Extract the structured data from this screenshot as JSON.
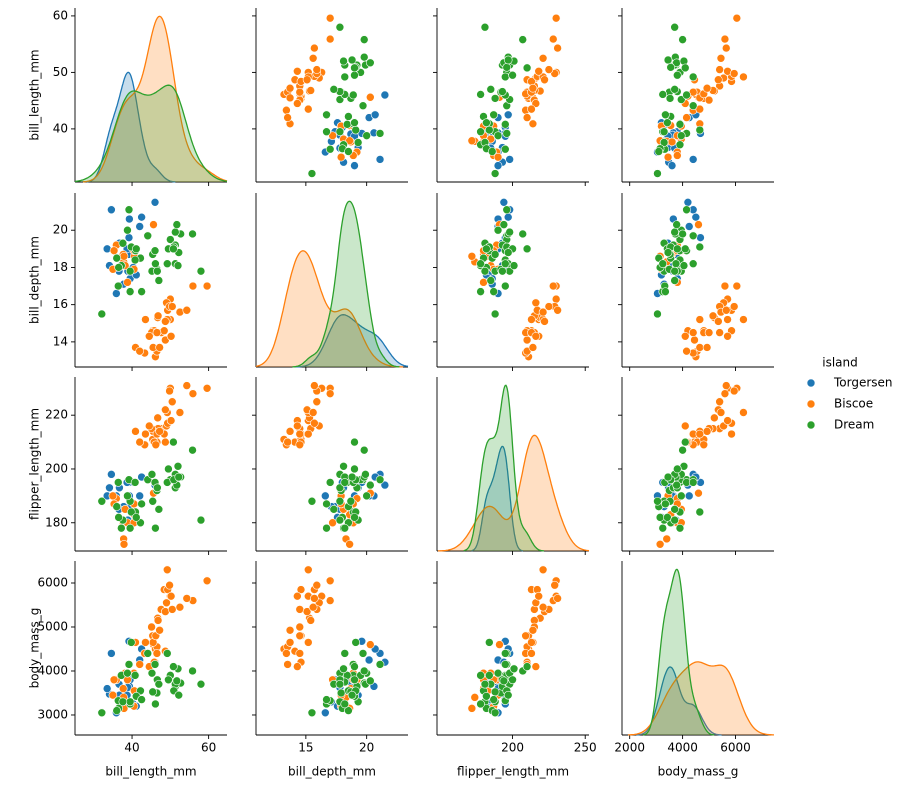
{
  "chart_data": {
    "type": "pairplot",
    "variables": [
      {
        "name": "bill_length_mm",
        "xlim": [
          25.1,
          64.8
        ],
        "xticks": [
          40,
          60
        ],
        "ylim": [
          30.6,
          61.4
        ],
        "yticks": [
          40,
          50,
          60
        ]
      },
      {
        "name": "bill_depth_mm",
        "xlim": [
          10.9,
          23.4
        ],
        "xticks": [
          15,
          20
        ],
        "ylim": [
          12.65,
          22.0
        ],
        "yticks": [
          14,
          16,
          18,
          20
        ]
      },
      {
        "name": "flipper_length_mm",
        "xlim": [
          148,
          252.6
        ],
        "xticks": [
          200,
          250
        ],
        "ylim": [
          169.5,
          234.2
        ],
        "yticks": [
          180,
          200,
          220
        ]
      },
      {
        "name": "body_mass_g",
        "xlim": [
          1709,
          7455
        ],
        "xticks": [
          2000,
          4000,
          6000
        ],
        "ylim": [
          2545,
          6500
        ],
        "yticks": [
          3000,
          4000,
          5000,
          6000
        ]
      }
    ],
    "legend_title": "island",
    "series": [
      {
        "name": "Torgersen",
        "color": "#1f77b4",
        "rows": [
          [
            39.1,
            18.7,
            181,
            3750
          ],
          [
            39.5,
            17.4,
            186,
            3800
          ],
          [
            40.3,
            18.0,
            195,
            3250
          ],
          [
            36.7,
            19.3,
            193,
            3450
          ],
          [
            39.3,
            20.6,
            190,
            3650
          ],
          [
            38.9,
            17.8,
            181,
            3625
          ],
          [
            39.2,
            19.6,
            195,
            4675
          ],
          [
            34.1,
            18.1,
            193,
            3475
          ],
          [
            42.0,
            20.2,
            190,
            4250
          ],
          [
            37.8,
            17.1,
            186,
            3300
          ],
          [
            41.1,
            17.6,
            182,
            3200
          ],
          [
            34.6,
            21.1,
            198,
            4400
          ],
          [
            36.6,
            17.8,
            185,
            3700
          ],
          [
            38.7,
            19.0,
            195,
            3450
          ],
          [
            42.5,
            20.7,
            197,
            4500
          ],
          [
            46.0,
            21.5,
            194,
            4200
          ],
          [
            35.9,
            16.6,
            190,
            3050
          ],
          [
            33.5,
            19.0,
            190,
            3600
          ]
        ]
      },
      {
        "name": "Biscoe",
        "color": "#ff7f0e",
        "rows": [
          [
            37.8,
            18.3,
            174,
            3400
          ],
          [
            37.7,
            18.7,
            180,
            3600
          ],
          [
            35.9,
            19.2,
            189,
            3800
          ],
          [
            38.2,
            18.1,
            185,
            3950
          ],
          [
            38.8,
            17.2,
            180,
            3800
          ],
          [
            35.3,
            18.9,
            187,
            3800
          ],
          [
            40.6,
            18.6,
            183,
            3550
          ],
          [
            40.5,
            17.9,
            187,
            3200
          ],
          [
            37.9,
            18.6,
            172,
            3150
          ],
          [
            40.5,
            18.9,
            180,
            3950
          ],
          [
            45.6,
            20.3,
            191,
            4600
          ],
          [
            35.0,
            17.9,
            190,
            3450
          ],
          [
            46.1,
            13.2,
            211,
            4500
          ],
          [
            50.0,
            16.3,
            230,
            5700
          ],
          [
            48.7,
            14.1,
            210,
            4450
          ],
          [
            50.0,
            15.2,
            218,
            5700
          ],
          [
            47.6,
            14.5,
            215,
            5400
          ],
          [
            46.5,
            13.5,
            210,
            4550
          ],
          [
            45.4,
            14.6,
            211,
            4800
          ],
          [
            46.7,
            15.3,
            219,
            5200
          ],
          [
            43.3,
            13.4,
            209,
            4400
          ],
          [
            46.8,
            15.4,
            215,
            5150
          ],
          [
            40.9,
            13.7,
            214,
            4650
          ],
          [
            49.0,
            16.1,
            216,
            5550
          ],
          [
            45.5,
            13.7,
            214,
            4650
          ],
          [
            48.4,
            14.6,
            213,
            5850
          ],
          [
            45.8,
            14.6,
            210,
            4200
          ],
          [
            49.3,
            15.7,
            217,
            5850
          ],
          [
            42.0,
            13.5,
            210,
            4150
          ],
          [
            49.2,
            15.2,
            221,
            6300
          ],
          [
            46.2,
            14.5,
            209,
            4800
          ],
          [
            48.7,
            15.1,
            222,
            5350
          ],
          [
            50.2,
            14.3,
            218,
            5700
          ],
          [
            45.1,
            14.5,
            215,
            5000
          ],
          [
            46.5,
            14.5,
            213,
            4400
          ],
          [
            59.6,
            17.0,
            230,
            6050
          ],
          [
            55.9,
            17.0,
            228,
            5600
          ],
          [
            49.8,
            15.9,
            229,
            5950
          ],
          [
            44.5,
            14.3,
            216,
            4100
          ],
          [
            50.5,
            15.9,
            225,
            5400
          ],
          [
            43.5,
            15.2,
            213,
            4650
          ],
          [
            52.5,
            15.6,
            221,
            5450
          ],
          [
            47.2,
            13.7,
            214,
            4925
          ],
          [
            54.3,
            15.7,
            231,
            5650
          ]
        ]
      },
      {
        "name": "Dream",
        "color": "#2ca02c",
        "rows": [
          [
            39.5,
            16.7,
            178,
            3250
          ],
          [
            37.2,
            18.1,
            178,
            3900
          ],
          [
            39.5,
            17.8,
            188,
            3300
          ],
          [
            40.9,
            18.9,
            184,
            3900
          ],
          [
            36.4,
            17.0,
            195,
            3325
          ],
          [
            39.2,
            21.1,
            196,
            4150
          ],
          [
            38.8,
            20.0,
            190,
            3950
          ],
          [
            42.2,
            18.5,
            180,
            3550
          ],
          [
            37.6,
            19.3,
            181,
            3300
          ],
          [
            39.8,
            19.1,
            184,
            4650
          ],
          [
            36.5,
            18.0,
            182,
            3150
          ],
          [
            40.8,
            18.4,
            195,
            3900
          ],
          [
            36.0,
            18.5,
            186,
            3100
          ],
          [
            44.1,
            19.7,
            196,
            4400
          ],
          [
            32.1,
            15.5,
            188,
            3050
          ],
          [
            41.1,
            19.0,
            182,
            3425
          ],
          [
            46.5,
            17.9,
            192,
            3500
          ],
          [
            50.0,
            19.5,
            196,
            3900
          ],
          [
            51.3,
            19.2,
            193,
            3650
          ],
          [
            45.4,
            18.7,
            188,
            3525
          ],
          [
            52.7,
            19.8,
            197,
            3725
          ],
          [
            45.2,
            17.8,
            198,
            3950
          ],
          [
            46.1,
            18.2,
            178,
            3250
          ],
          [
            51.3,
            18.2,
            197,
            3750
          ],
          [
            46.0,
            18.9,
            195,
            4150
          ],
          [
            51.3,
            19.9,
            198,
            3700
          ],
          [
            46.6,
            17.8,
            193,
            3800
          ],
          [
            51.7,
            20.3,
            194,
            3775
          ],
          [
            47.0,
            17.3,
            185,
            3700
          ],
          [
            52.0,
            18.1,
            201,
            4050
          ],
          [
            58.0,
            17.8,
            181,
            3700
          ],
          [
            49.2,
            18.2,
            195,
            4400
          ],
          [
            50.9,
            19.1,
            196,
            3550
          ],
          [
            55.8,
            19.8,
            207,
            4000
          ],
          [
            49.5,
            19.0,
            200,
            3800
          ],
          [
            52.2,
            18.8,
            197,
            3450
          ],
          [
            50.8,
            19.0,
            210,
            4100
          ],
          [
            42.5,
            16.7,
            187,
            3350
          ]
        ]
      }
    ]
  }
}
